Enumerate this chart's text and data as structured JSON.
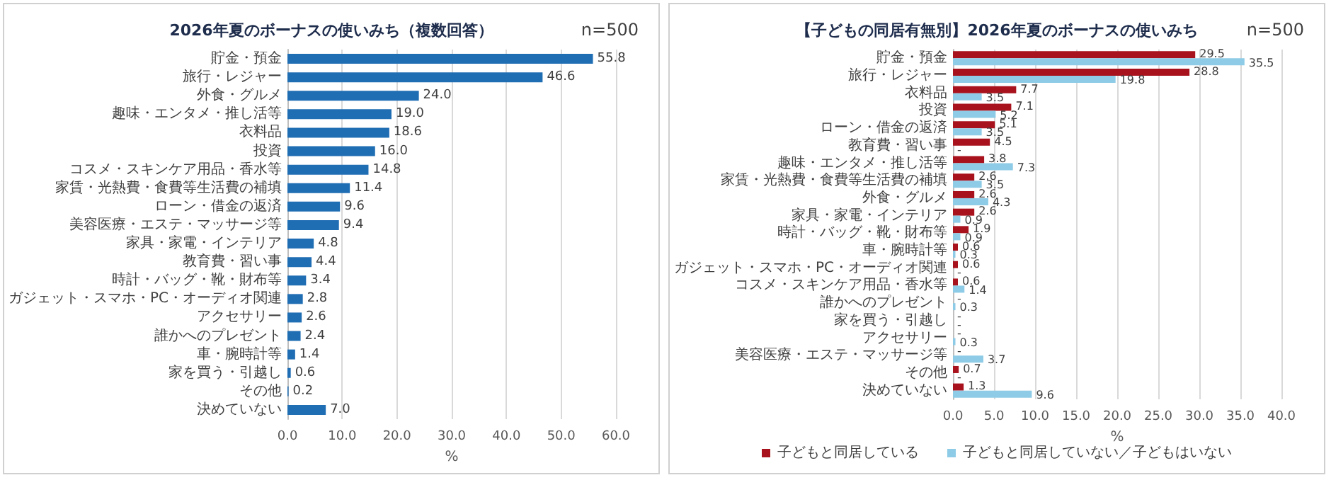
{
  "chart_data": [
    {
      "type": "bar",
      "orientation": "horizontal",
      "title": "2026年夏のボーナスの使いみち（複数回答）",
      "xlabel": "%",
      "annotations": [
        "n=500"
      ],
      "categories": [
        "貯金・預金",
        "旅行・レジャー",
        "外食・グルメ",
        "趣味・エンタメ・推し活等",
        "衣料品",
        "投資",
        "コスメ・スキンケア用品・香水等",
        "家賃・光熱費・食費等生活費の補填",
        "ローン・借金の返済",
        "美容医療・エステ・マッサージ等",
        "家具・家電・インテリア",
        "教育費・習い事",
        "時計・バッグ・靴・財布等",
        "ガジェット・スマホ・PC・オーディオ関連",
        "アクセサリー",
        "誰かへのプレゼント",
        "車・腕時計等",
        "家を買う・引越し",
        "その他",
        "決めていない"
      ],
      "values": [
        55.8,
        46.6,
        24.0,
        19.0,
        18.6,
        16.0,
        14.8,
        11.4,
        9.6,
        9.4,
        4.8,
        4.4,
        3.4,
        2.8,
        2.6,
        2.4,
        1.4,
        0.6,
        0.2,
        7.0
      ],
      "value_labels": [
        "55.8",
        "46.6",
        "24.0",
        "19.0",
        "18.6",
        "16.0",
        "14.8",
        "11.4",
        "9.6",
        "9.4",
        "4.8",
        "4.4",
        "3.4",
        "2.8",
        "2.6",
        "2.4",
        "1.4",
        "0.6",
        "0.2",
        "7.0"
      ],
      "color": "#1f6db3",
      "xlim": [
        0,
        60
      ],
      "xticks": [
        {
          "value": 0,
          "label": "0.0"
        },
        {
          "value": 10,
          "label": "10.0"
        },
        {
          "value": 20,
          "label": "20.0"
        },
        {
          "value": 30,
          "label": "30.0"
        },
        {
          "value": 40,
          "label": "40.0"
        },
        {
          "value": 50,
          "label": "50.0"
        },
        {
          "value": 60,
          "label": "60.0"
        }
      ],
      "grid": "x",
      "legend": false
    },
    {
      "type": "bar",
      "orientation": "horizontal",
      "title": "【子どもの同居有無別】2026年夏のボーナスの使いみち",
      "xlabel": "%",
      "annotations": [
        "n=500"
      ],
      "categories": [
        "貯金・預金",
        "旅行・レジャー",
        "衣料品",
        "投資",
        "ローン・借金の返済",
        "教育費・習い事",
        "趣味・エンタメ・推し活等",
        "家賃・光熱費・食費等生活費の補填",
        "外食・グルメ",
        "家具・家電・インテリア",
        "時計・バッグ・靴・財布等",
        "車・腕時計等",
        "ガジェット・スマホ・PC・オーディオ関連",
        "コスメ・スキンケア用品・香水等",
        "誰かへのプレゼント",
        "家を買う・引越し",
        "アクセサリー",
        "美容医療・エステ・マッサージ等",
        "その他",
        "決めていない"
      ],
      "series": [
        {
          "name": "子どもと同居している",
          "color": "#a8121c",
          "values": [
            29.5,
            28.8,
            7.7,
            7.1,
            5.1,
            4.5,
            3.8,
            2.6,
            2.6,
            2.6,
            1.9,
            0.6,
            0.6,
            0.6,
            0,
            0,
            0,
            0,
            0.7,
            1.3
          ],
          "value_labels": [
            "29.5",
            "28.8",
            "7.7",
            "7.1",
            "5.1",
            "4.5",
            "3.8",
            "2.6",
            "2.6",
            "2.6",
            "1.9",
            "0.6",
            "0.6",
            "0.6",
            "-",
            "-",
            "-",
            "-",
            "0.7",
            "1.3"
          ]
        },
        {
          "name": "子どもと同居していない／子どもはいない",
          "color": "#8ecbe6",
          "values": [
            35.5,
            19.8,
            3.5,
            5.2,
            3.5,
            0,
            7.3,
            3.5,
            4.3,
            0.9,
            0.9,
            0.3,
            0,
            1.4,
            0.3,
            0,
            0.3,
            3.7,
            0,
            9.6
          ],
          "value_labels": [
            "35.5",
            "19.8",
            "3.5",
            "5.2",
            "3.5",
            "-",
            "7.3",
            "3.5",
            "4.3",
            "0.9",
            "0.9",
            "0.3",
            "-",
            "1.4",
            "0.3",
            "-",
            "0.3",
            "3.7",
            "-",
            "9.6"
          ]
        }
      ],
      "xlim": [
        0,
        40
      ],
      "xticks": [
        {
          "value": 0,
          "label": "0.0"
        },
        {
          "value": 5,
          "label": "5.0"
        },
        {
          "value": 10,
          "label": "10.0"
        },
        {
          "value": 15,
          "label": "15.0"
        },
        {
          "value": 20,
          "label": "20.0"
        },
        {
          "value": 25,
          "label": "25.0"
        },
        {
          "value": 30,
          "label": "30.0"
        },
        {
          "value": 35,
          "label": "35.0"
        },
        {
          "value": 40,
          "label": "40.0"
        }
      ],
      "grid": "x",
      "legend": "bottom"
    }
  ]
}
